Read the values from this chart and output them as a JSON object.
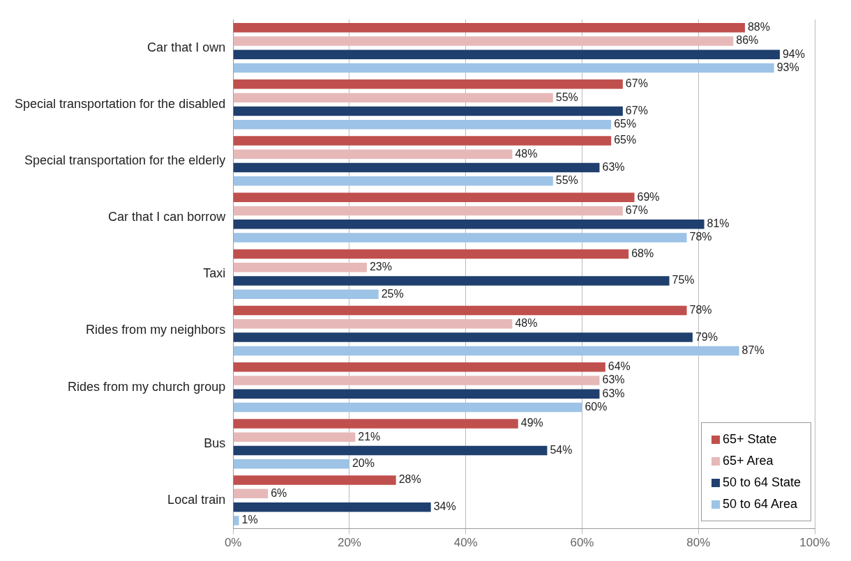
{
  "chart_data": {
    "type": "bar",
    "orientation": "horizontal",
    "categories": [
      "Car that I own",
      "Special transportation for the disabled",
      "Special transportation for the elderly",
      "Car that I can borrow",
      "Taxi",
      "Rides from my neighbors",
      "Rides from my church group",
      "Bus",
      "Local train"
    ],
    "series": [
      {
        "name": "65+ State",
        "color": "#c0504d",
        "values": [
          88,
          67,
          65,
          69,
          68,
          78,
          64,
          49,
          28
        ],
        "value_labels": [
          "88%",
          "67%",
          "65%",
          "69%",
          "68%",
          "78%",
          "64%",
          "49%",
          "28%"
        ]
      },
      {
        "name": "65+ Area",
        "color": "#e6b9b8",
        "values": [
          86,
          55,
          48,
          67,
          23,
          48,
          63,
          21,
          6
        ],
        "value_labels": [
          "86%",
          "55%",
          "48%",
          "67%",
          "23%",
          "48%",
          "63%",
          "21%",
          "6%"
        ]
      },
      {
        "name": "50 to 64 State",
        "color": "#1f3f6e",
        "values": [
          94,
          67,
          63,
          81,
          75,
          79,
          63,
          54,
          34
        ],
        "value_labels": [
          "94%",
          "67%",
          "63%",
          "81%",
          "75%",
          "79%",
          "63%",
          "54%",
          "34%"
        ]
      },
      {
        "name": "50 to 64 Area",
        "color": "#9dc3e6",
        "values": [
          93,
          65,
          55,
          78,
          25,
          87,
          60,
          20,
          1
        ],
        "value_labels": [
          "93%",
          "65%",
          "55%",
          "78%",
          "25%",
          "87%",
          "60%",
          "20%",
          "1%"
        ]
      }
    ],
    "xlim": [
      0,
      100
    ],
    "xticks": [
      {
        "value": 0,
        "label": "0%"
      },
      {
        "value": 20,
        "label": "20%"
      },
      {
        "value": 40,
        "label": "40%"
      },
      {
        "value": 60,
        "label": "60%"
      },
      {
        "value": 80,
        "label": "80%"
      },
      {
        "value": 100,
        "label": "100%"
      }
    ],
    "grid": "x",
    "legend": "bottom right"
  }
}
